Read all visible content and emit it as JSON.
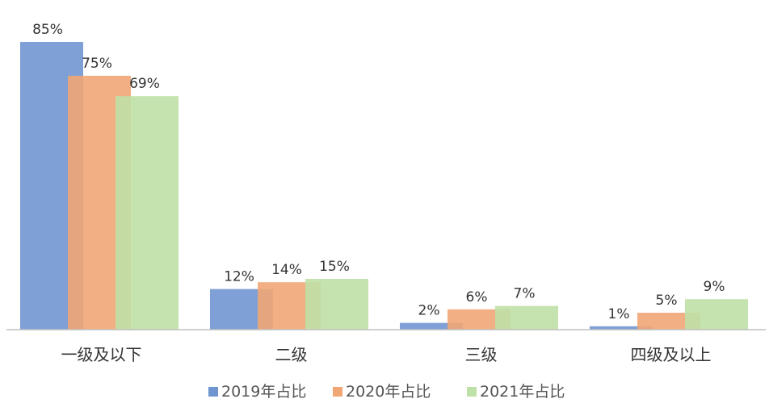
{
  "chart_data": {
    "type": "bar",
    "categories": [
      "一级及以下",
      "二级",
      "三级",
      "四级及以上"
    ],
    "series": [
      {
        "name": "2019年占比",
        "values": [
          85,
          12,
          2,
          1
        ],
        "labels": [
          "85%",
          "12%",
          "2%",
          "1%"
        ],
        "color": "#7096D2"
      },
      {
        "name": "2020年占比",
        "values": [
          75,
          14,
          6,
          5
        ],
        "labels": [
          "75%",
          "14%",
          "6%",
          "5%"
        ],
        "color": "#F1A675"
      },
      {
        "name": "2021年占比",
        "values": [
          69,
          15,
          7,
          9
        ],
        "labels": [
          "69%",
          "15%",
          "7%",
          "9%"
        ],
        "color": "#BFE0A6"
      }
    ],
    "title": "",
    "xlabel": "",
    "ylabel": "",
    "ylim": [
      0,
      85
    ],
    "grid": false,
    "legend": "bottom",
    "axis_color": "#BFBFBF"
  }
}
